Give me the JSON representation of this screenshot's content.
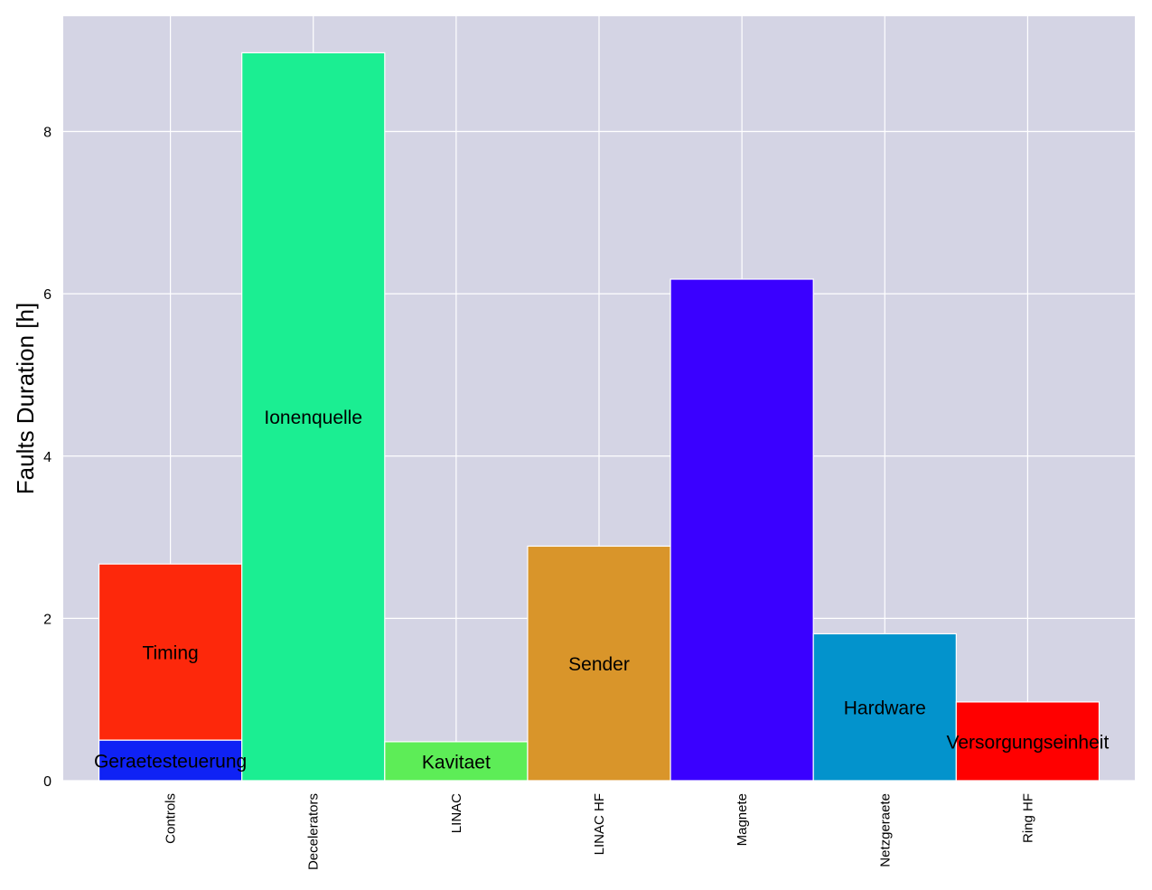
{
  "chart_data": {
    "type": "bar",
    "stacked": true,
    "title": "",
    "xlabel": "",
    "ylabel": "Faults Duration [h]",
    "ylim": [
      0,
      9.42
    ],
    "xlim": [
      -0.75,
      6.75
    ],
    "grid": true,
    "background": "#d4d4e4",
    "categories": [
      "Controls",
      "Decelerators",
      "LINAC",
      "LINAC HF",
      "Magnete",
      "Netzgeraete",
      "Ring HF"
    ],
    "yticks": [
      0,
      2,
      4,
      6,
      8
    ],
    "segments": [
      {
        "category": "Controls",
        "label": "Geraetesteuerung",
        "base": 0,
        "value": 0.5,
        "color": "#0f22f5"
      },
      {
        "category": "Controls",
        "label": "Timing",
        "base": 0.5,
        "value": 2.17,
        "color": "#fd280b"
      },
      {
        "category": "Decelerators",
        "label": "Ionenquelle",
        "base": 0,
        "value": 8.97,
        "color": "#1bee92"
      },
      {
        "category": "LINAC",
        "label": "Kavitaet",
        "base": 0,
        "value": 0.48,
        "color": "#5ded57"
      },
      {
        "category": "LINAC HF",
        "label": "Sender",
        "base": 0,
        "value": 2.89,
        "color": "#d9952a"
      },
      {
        "category": "Magnete",
        "label": "",
        "base": 0,
        "value": 6.18,
        "color": "#3a00ff"
      },
      {
        "category": "Netzgeraete",
        "label": "Hardware",
        "base": 0,
        "value": 1.81,
        "color": "#0393cc"
      },
      {
        "category": "Ring HF",
        "label": "Versorgungseinheit",
        "base": 0,
        "value": 0.97,
        "color": "#ff0000"
      }
    ]
  }
}
